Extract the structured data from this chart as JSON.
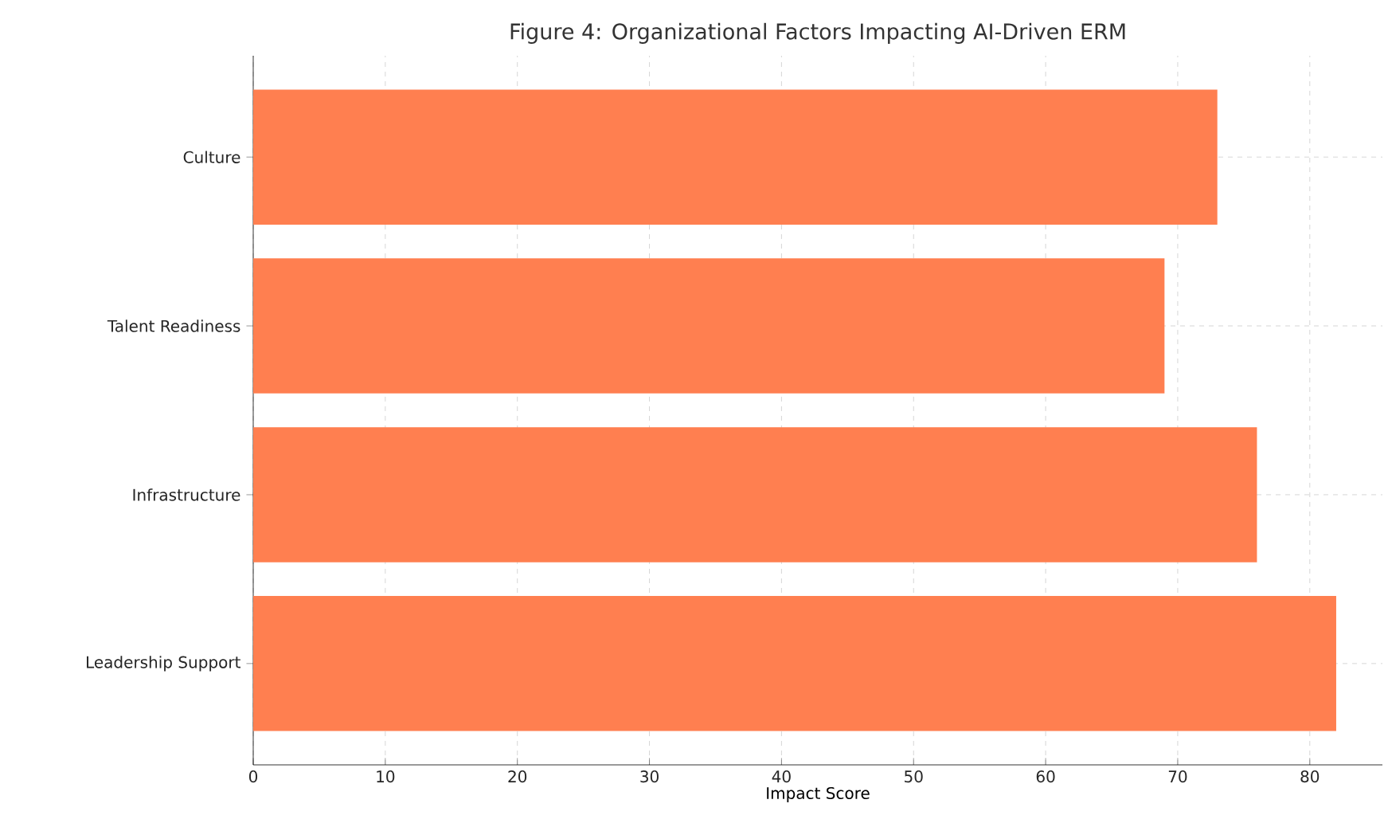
{
  "chart_data": {
    "type": "bar",
    "orientation": "horizontal",
    "title": "Figure 4: Organizational Factors Impacting AI-Driven ERM",
    "xlabel": "Impact Score",
    "categories": [
      "Culture",
      "Talent Readiness",
      "Infrastructure",
      "Leadership Support"
    ],
    "values": [
      73,
      69,
      76,
      82
    ],
    "color": "#ff7f50",
    "xlim": [
      0,
      85.5
    ],
    "xticks": [
      0,
      10,
      20,
      30,
      40,
      50,
      60,
      70,
      80
    ],
    "grid": true
  }
}
